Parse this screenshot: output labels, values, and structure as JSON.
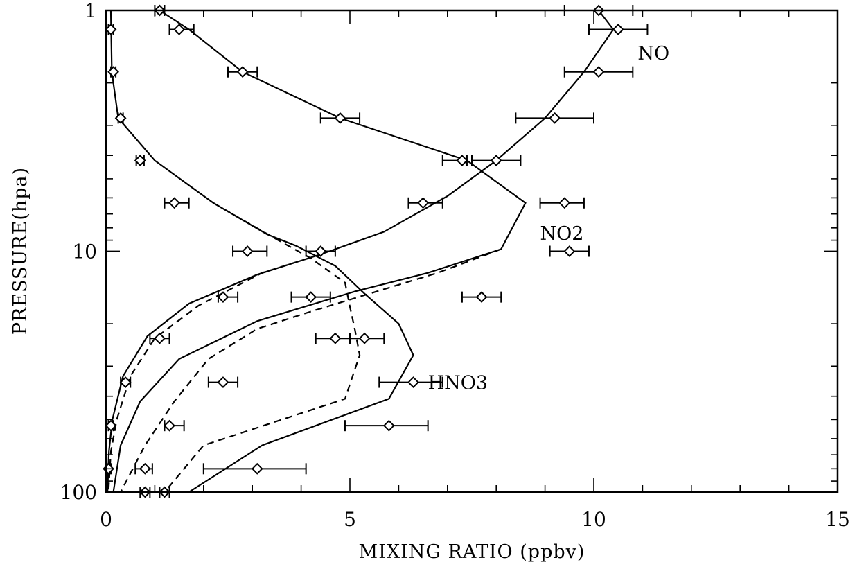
{
  "chart_data": {
    "type": "line",
    "xlabel": "MIXING RATIO (ppbv)",
    "ylabel": "PRESSURE(hpa)",
    "xlim": [
      0,
      15
    ],
    "ylim": [
      100,
      1
    ],
    "yscale": "log",
    "x_ticks": [
      0,
      5,
      10,
      15
    ],
    "x_tick_labels": [
      "0",
      "5",
      "10",
      "15"
    ],
    "y_ticks": [
      1,
      10,
      100
    ],
    "y_tick_labels": [
      "1",
      "10",
      "100"
    ],
    "grid": false,
    "series_labels": [
      {
        "text": "NO",
        "x": 10.9,
        "y": 1.5
      },
      {
        "text": "NO2",
        "x": 8.9,
        "y": 8.4
      },
      {
        "text": "HNO3",
        "x": 6.6,
        "y": 35
      }
    ],
    "model_lines": [
      {
        "group": "NO",
        "style": "solid",
        "points": [
          [
            10.1,
            1.0
          ],
          [
            10.4,
            1.2
          ],
          [
            9.8,
            1.8
          ],
          [
            9.0,
            2.8
          ],
          [
            8.0,
            4.2
          ],
          [
            7.0,
            5.9
          ],
          [
            5.7,
            8.3
          ],
          [
            4.4,
            10.3
          ],
          [
            3.1,
            12.5
          ],
          [
            1.7,
            16.5
          ],
          [
            0.85,
            22.5
          ],
          [
            0.35,
            33
          ],
          [
            0.13,
            50
          ],
          [
            0.06,
            68
          ],
          [
            0.03,
            100
          ]
        ]
      },
      {
        "group": "NO",
        "style": "dashed",
        "points": [
          [
            4.4,
            10.3
          ],
          [
            3.2,
            12.3
          ],
          [
            1.9,
            16.8
          ],
          [
            1.0,
            23
          ],
          [
            0.5,
            33
          ],
          [
            0.22,
            50
          ],
          [
            0.1,
            68
          ],
          [
            0.05,
            100
          ]
        ]
      },
      {
        "group": "NO2",
        "style": "solid",
        "points": [
          [
            1.1,
            1.0
          ],
          [
            1.7,
            1.2
          ],
          [
            2.8,
            1.8
          ],
          [
            4.8,
            2.8
          ],
          [
            7.4,
            4.2
          ],
          [
            8.6,
            6.3
          ],
          [
            8.1,
            9.8
          ],
          [
            6.6,
            12.3
          ],
          [
            5.1,
            14.7
          ],
          [
            3.1,
            19.5
          ],
          [
            1.5,
            28
          ],
          [
            0.7,
            42
          ],
          [
            0.3,
            64
          ],
          [
            0.15,
            100
          ]
        ]
      },
      {
        "group": "NO2",
        "style": "dashed",
        "points": [
          [
            8.1,
            9.8
          ],
          [
            6.8,
            12.3
          ],
          [
            5.4,
            15
          ],
          [
            4.2,
            17.8
          ],
          [
            3.1,
            21
          ],
          [
            2.1,
            28
          ],
          [
            1.4,
            42
          ],
          [
            0.8,
            64
          ],
          [
            0.3,
            100
          ]
        ]
      },
      {
        "group": "HNO3",
        "style": "solid",
        "points": [
          [
            0.1,
            1.0
          ],
          [
            0.12,
            1.8
          ],
          [
            0.25,
            2.8
          ],
          [
            1.0,
            4.2
          ],
          [
            2.2,
            6.3
          ],
          [
            3.3,
            8.5
          ],
          [
            3.9,
            9.5
          ],
          [
            4.7,
            11.5
          ],
          [
            5.3,
            15
          ],
          [
            6.0,
            20
          ],
          [
            6.3,
            27
          ],
          [
            5.8,
            41
          ],
          [
            3.2,
            64
          ],
          [
            1.7,
            100
          ]
        ]
      },
      {
        "group": "HNO3",
        "style": "dashed",
        "points": [
          [
            2.2,
            6.3
          ],
          [
            3.4,
            8.7
          ],
          [
            4.2,
            10.7
          ],
          [
            4.9,
            13.5
          ],
          [
            5.0,
            17
          ],
          [
            5.1,
            21
          ],
          [
            5.2,
            27
          ],
          [
            4.9,
            41
          ],
          [
            2.0,
            64
          ],
          [
            1.2,
            100
          ]
        ]
      }
    ],
    "measurements": [
      {
        "x": 10.1,
        "y": 1.0,
        "xerr_low": 9.4,
        "xerr_high": 10.8
      },
      {
        "x": 10.5,
        "y": 1.2,
        "xerr_low": 9.9,
        "xerr_high": 11.1
      },
      {
        "x": 10.1,
        "y": 1.8,
        "xerr_low": 9.4,
        "xerr_high": 10.8
      },
      {
        "x": 9.2,
        "y": 2.8,
        "xerr_low": 8.4,
        "xerr_high": 10.0
      },
      {
        "x": 8.0,
        "y": 4.2,
        "xerr_low": 7.5,
        "xerr_high": 8.5
      },
      {
        "x": 9.4,
        "y": 6.3,
        "xerr_low": 8.9,
        "xerr_high": 9.8
      },
      {
        "x": 9.5,
        "y": 10.0,
        "xerr_low": 9.1,
        "xerr_high": 9.9
      },
      {
        "x": 7.7,
        "y": 15.5,
        "xerr_low": 7.3,
        "xerr_high": 8.1
      },
      {
        "x": 5.3,
        "y": 23,
        "xerr_low": 5.0,
        "xerr_high": 5.7
      },
      {
        "x": 6.3,
        "y": 35,
        "xerr_low": 5.6,
        "xerr_high": 6.9
      },
      {
        "x": 5.8,
        "y": 53,
        "xerr_low": 4.9,
        "xerr_high": 6.6
      },
      {
        "x": 3.1,
        "y": 80,
        "xerr_low": 2.0,
        "xerr_high": 4.1
      },
      {
        "x": 1.1,
        "y": 1.0,
        "xerr_low": 1.0,
        "xerr_high": 1.2
      },
      {
        "x": 1.5,
        "y": 1.2,
        "xerr_low": 1.3,
        "xerr_high": 1.8
      },
      {
        "x": 2.8,
        "y": 1.8,
        "xerr_low": 2.5,
        "xerr_high": 3.1
      },
      {
        "x": 4.8,
        "y": 2.8,
        "xerr_low": 4.4,
        "xerr_high": 5.2
      },
      {
        "x": 7.3,
        "y": 4.2,
        "xerr_low": 6.9,
        "xerr_high": 7.4
      },
      {
        "x": 6.5,
        "y": 6.3,
        "xerr_low": 6.2,
        "xerr_high": 6.9
      },
      {
        "x": 4.4,
        "y": 10.0,
        "xerr_low": 4.1,
        "xerr_high": 4.7
      },
      {
        "x": 4.2,
        "y": 15.5,
        "xerr_low": 3.8,
        "xerr_high": 4.6
      },
      {
        "x": 4.7,
        "y": 23,
        "xerr_low": 4.3,
        "xerr_high": 5.0
      },
      {
        "x": 0.1,
        "y": 1.2,
        "xerr_low": 0.05,
        "xerr_high": 0.15
      },
      {
        "x": 0.15,
        "y": 1.8,
        "xerr_low": 0.1,
        "xerr_high": 0.2
      },
      {
        "x": 0.3,
        "y": 2.8,
        "xerr_low": 0.25,
        "xerr_high": 0.35
      },
      {
        "x": 0.7,
        "y": 4.2,
        "xerr_low": 0.62,
        "xerr_high": 0.78
      },
      {
        "x": 1.4,
        "y": 6.3,
        "xerr_low": 1.2,
        "xerr_high": 1.7
      },
      {
        "x": 2.9,
        "y": 10.0,
        "xerr_low": 2.6,
        "xerr_high": 3.3
      },
      {
        "x": 2.4,
        "y": 15.5,
        "xerr_low": 2.3,
        "xerr_high": 2.7
      },
      {
        "x": 1.1,
        "y": 23,
        "xerr_low": 0.9,
        "xerr_high": 1.3
      },
      {
        "x": 2.4,
        "y": 35,
        "xerr_low": 2.1,
        "xerr_high": 2.7
      },
      {
        "x": 1.3,
        "y": 53,
        "xerr_low": 1.2,
        "xerr_high": 1.6
      },
      {
        "x": 0.8,
        "y": 80,
        "xerr_low": 0.6,
        "xerr_high": 0.95
      },
      {
        "x": 0.4,
        "y": 35,
        "xerr_low": 0.3,
        "xerr_high": 0.5
      },
      {
        "x": 0.1,
        "y": 53,
        "xerr_low": 0.05,
        "xerr_high": 0.15
      },
      {
        "x": 0.05,
        "y": 80,
        "xerr_low": 0.02,
        "xerr_high": 0.1
      },
      {
        "x": 0.8,
        "y": 100,
        "xerr_low": 0.7,
        "xerr_high": 0.9
      },
      {
        "x": 1.2,
        "y": 100,
        "xerr_low": 1.1,
        "xerr_high": 1.3
      }
    ]
  }
}
